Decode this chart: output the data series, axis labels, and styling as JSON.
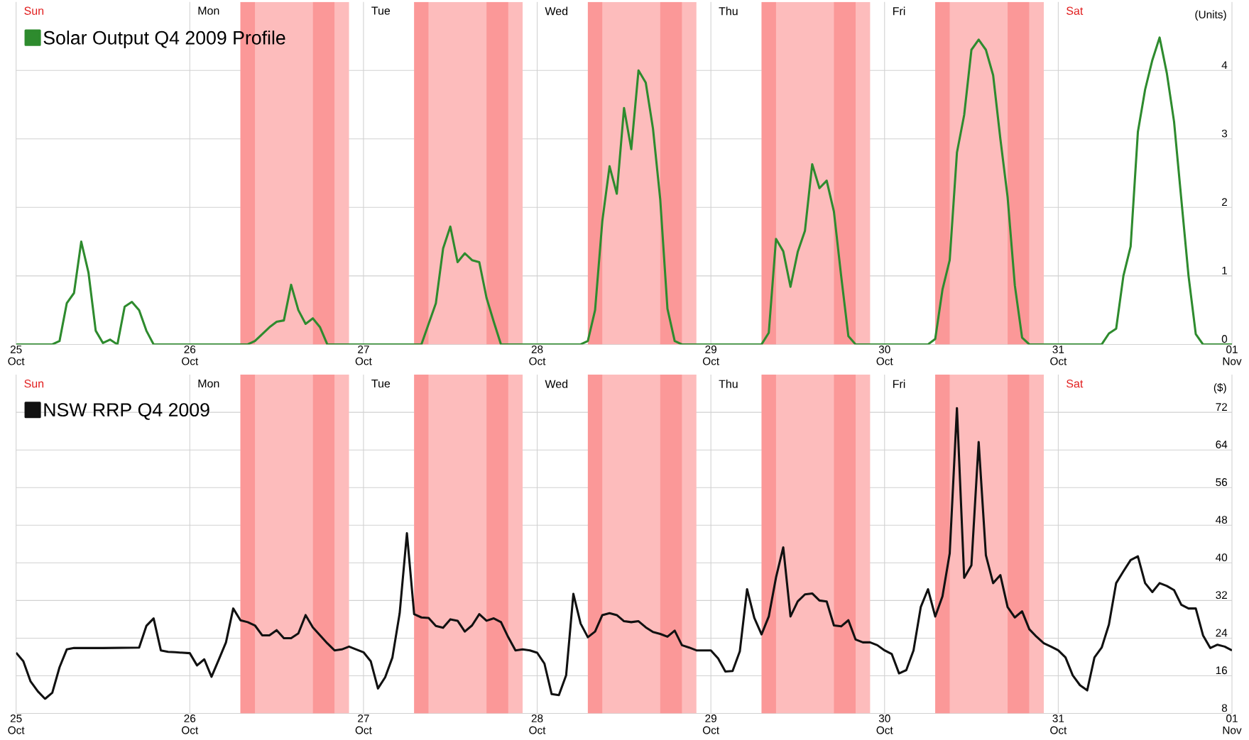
{
  "chart_data": [
    {
      "type": "line",
      "xlim": [
        "2009-10-25T00:00",
        "2009-11-01T00:00"
      ],
      "ylim": [
        0,
        5
      ],
      "yticks": [
        0,
        1,
        2,
        3,
        4
      ],
      "ylabel": "(Units)",
      "grid": true,
      "legend": "top left",
      "xticks": [
        {
          "value": "2009-10-25T00:00",
          "label": "25 Oct"
        },
        {
          "value": "2009-10-26T00:00",
          "label": "26 Oct"
        },
        {
          "value": "2009-10-27T00:00",
          "label": "27 Oct"
        },
        {
          "value": "2009-10-28T00:00",
          "label": "28 Oct"
        },
        {
          "value": "2009-10-29T00:00",
          "label": "29 Oct"
        },
        {
          "value": "2009-10-30T00:00",
          "label": "30 Oct"
        },
        {
          "value": "2009-10-31T00:00",
          "label": "31 Oct"
        },
        {
          "value": "2009-11-01T00:00",
          "label": "01 Nov"
        }
      ],
      "annotations": [
        "Sun",
        "Mon",
        "Tue",
        "Wed",
        "Thu",
        "Fri",
        "Sat"
      ],
      "bands": [
        {
          "axis": "x",
          "from": "2009-10-26T07:00",
          "to": "2009-10-26T22:00",
          "color": "#fdbcbc"
        },
        {
          "axis": "x",
          "from": "2009-10-27T07:00",
          "to": "2009-10-27T22:00",
          "color": "#fdbcbc"
        },
        {
          "axis": "x",
          "from": "2009-10-28T07:00",
          "to": "2009-10-28T22:00",
          "color": "#fdbcbc"
        },
        {
          "axis": "x",
          "from": "2009-10-29T07:00",
          "to": "2009-10-29T22:00",
          "color": "#fdbcbc"
        },
        {
          "axis": "x",
          "from": "2009-10-30T07:00",
          "to": "2009-10-30T22:00",
          "color": "#fdbcbc"
        },
        {
          "axis": "x",
          "from": "2009-10-26T07:00",
          "to": "2009-10-26T09:00",
          "color": "#fb9898"
        },
        {
          "axis": "x",
          "from": "2009-10-26T17:00",
          "to": "2009-10-26T20:00",
          "color": "#fb9898"
        },
        {
          "axis": "x",
          "from": "2009-10-27T07:00",
          "to": "2009-10-27T09:00",
          "color": "#fb9898"
        },
        {
          "axis": "x",
          "from": "2009-10-27T17:00",
          "to": "2009-10-27T20:00",
          "color": "#fb9898"
        },
        {
          "axis": "x",
          "from": "2009-10-28T07:00",
          "to": "2009-10-28T09:00",
          "color": "#fb9898"
        },
        {
          "axis": "x",
          "from": "2009-10-28T17:00",
          "to": "2009-10-28T20:00",
          "color": "#fb9898"
        },
        {
          "axis": "x",
          "from": "2009-10-29T07:00",
          "to": "2009-10-29T09:00",
          "color": "#fb9898"
        },
        {
          "axis": "x",
          "from": "2009-10-29T17:00",
          "to": "2009-10-29T20:00",
          "color": "#fb9898"
        },
        {
          "axis": "x",
          "from": "2009-10-30T07:00",
          "to": "2009-10-30T09:00",
          "color": "#fb9898"
        },
        {
          "axis": "x",
          "from": "2009-10-30T17:00",
          "to": "2009-10-30T20:00",
          "color": "#fb9898"
        }
      ],
      "series": [
        {
          "name": "Solar Output Q4 2009 Profile",
          "color": "#2e8b2e",
          "x": [
            "2009-10-25T00:00",
            "2009-10-25T05:00",
            "2009-10-25T06:00",
            "2009-10-25T07:00",
            "2009-10-25T08:00",
            "2009-10-25T09:00",
            "2009-10-25T10:00",
            "2009-10-25T11:00",
            "2009-10-25T12:00",
            "2009-10-25T13:00",
            "2009-10-25T14:00",
            "2009-10-25T15:00",
            "2009-10-25T16:00",
            "2009-10-25T17:00",
            "2009-10-25T18:00",
            "2009-10-25T19:00",
            "2009-10-26T08:00",
            "2009-10-26T09:00",
            "2009-10-26T11:00",
            "2009-10-26T12:00",
            "2009-10-26T13:00",
            "2009-10-26T14:00",
            "2009-10-26T15:00",
            "2009-10-26T16:00",
            "2009-10-26T17:00",
            "2009-10-26T18:00",
            "2009-10-26T19:00",
            "2009-10-27T08:00",
            "2009-10-27T09:00",
            "2009-10-27T10:00",
            "2009-10-27T11:00",
            "2009-10-27T12:00",
            "2009-10-27T13:00",
            "2009-10-27T14:00",
            "2009-10-27T15:00",
            "2009-10-27T16:00",
            "2009-10-27T17:00",
            "2009-10-27T18:00",
            "2009-10-27T19:00",
            "2009-10-28T06:00",
            "2009-10-28T07:00",
            "2009-10-28T08:00",
            "2009-10-28T09:00",
            "2009-10-28T10:00",
            "2009-10-28T11:00",
            "2009-10-28T12:00",
            "2009-10-28T13:00",
            "2009-10-28T14:00",
            "2009-10-28T15:00",
            "2009-10-28T16:00",
            "2009-10-28T17:00",
            "2009-10-28T18:00",
            "2009-10-28T19:00",
            "2009-10-28T20:00",
            "2009-10-29T07:00",
            "2009-10-29T08:00",
            "2009-10-29T09:00",
            "2009-10-29T10:00",
            "2009-10-29T11:00",
            "2009-10-29T12:00",
            "2009-10-29T13:00",
            "2009-10-29T14:00",
            "2009-10-29T15:00",
            "2009-10-29T16:00",
            "2009-10-29T17:00",
            "2009-10-29T18:00",
            "2009-10-29T19:00",
            "2009-10-29T20:00",
            "2009-10-30T06:00",
            "2009-10-30T07:00",
            "2009-10-30T08:00",
            "2009-10-30T09:00",
            "2009-10-30T10:00",
            "2009-10-30T11:00",
            "2009-10-30T12:00",
            "2009-10-30T13:00",
            "2009-10-30T14:00",
            "2009-10-30T15:00",
            "2009-10-30T16:00",
            "2009-10-30T17:00",
            "2009-10-30T18:00",
            "2009-10-30T19:00",
            "2009-10-30T20:00",
            "2009-10-31T06:00",
            "2009-10-31T07:00",
            "2009-10-31T08:00",
            "2009-10-31T09:00",
            "2009-10-31T10:00",
            "2009-10-31T11:00",
            "2009-10-31T12:00",
            "2009-10-31T13:00",
            "2009-10-31T14:00",
            "2009-10-31T15:00",
            "2009-10-31T16:00",
            "2009-10-31T17:00",
            "2009-10-31T18:00",
            "2009-10-31T19:00",
            "2009-10-31T20:00",
            "2009-11-01T00:00"
          ],
          "values": [
            0,
            0,
            0.05,
            0.6,
            0.75,
            1.5,
            1.05,
            0.2,
            0.02,
            0.07,
            0,
            0.55,
            0.62,
            0.5,
            0.2,
            0,
            0,
            0.05,
            0.25,
            0.33,
            0.35,
            0.87,
            0.5,
            0.3,
            0.38,
            0.25,
            0,
            0,
            0.3,
            0.6,
            1.4,
            1.72,
            1.2,
            1.33,
            1.23,
            1.2,
            0.68,
            0.33,
            0,
            0,
            0.05,
            0.5,
            1.8,
            2.6,
            2.2,
            3.45,
            2.85,
            4.0,
            3.82,
            3.15,
            2.12,
            0.52,
            0.05,
            0,
            0,
            0.17,
            1.54,
            1.36,
            0.84,
            1.35,
            1.66,
            2.63,
            2.28,
            2.39,
            1.94,
            1.0,
            0.12,
            0,
            0,
            0.08,
            0.8,
            1.23,
            2.8,
            3.35,
            4.3,
            4.45,
            4.3,
            3.93,
            3.0,
            2.15,
            0.86,
            0.1,
            0,
            0,
            0.16,
            0.23,
            1.0,
            1.43,
            3.1,
            3.72,
            4.15,
            4.48,
            3.96,
            3.25,
            2.12,
            1.0,
            0.15,
            0,
            0
          ]
        }
      ]
    },
    {
      "type": "line",
      "xlim": [
        "2009-10-25T00:00",
        "2009-11-01T00:00"
      ],
      "ylim": [
        8,
        80
      ],
      "yticks": [
        8,
        16,
        24,
        32,
        40,
        48,
        56,
        64,
        72
      ],
      "ylabel": "($)",
      "grid": true,
      "legend": "top left",
      "xticks": [
        {
          "value": "2009-10-25T00:00",
          "label": "25 Oct"
        },
        {
          "value": "2009-10-26T00:00",
          "label": "26 Oct"
        },
        {
          "value": "2009-10-27T00:00",
          "label": "27 Oct"
        },
        {
          "value": "2009-10-28T00:00",
          "label": "28 Oct"
        },
        {
          "value": "2009-10-29T00:00",
          "label": "29 Oct"
        },
        {
          "value": "2009-10-30T00:00",
          "label": "30 Oct"
        },
        {
          "value": "2009-10-31T00:00",
          "label": "31 Oct"
        },
        {
          "value": "2009-11-01T00:00",
          "label": "01 Nov"
        }
      ],
      "annotations": [
        "Sun",
        "Mon",
        "Tue",
        "Wed",
        "Thu",
        "Fri",
        "Sat"
      ],
      "bands": [
        {
          "axis": "x",
          "from": "2009-10-26T07:00",
          "to": "2009-10-26T22:00",
          "color": "#fdbcbc"
        },
        {
          "axis": "x",
          "from": "2009-10-27T07:00",
          "to": "2009-10-27T22:00",
          "color": "#fdbcbc"
        },
        {
          "axis": "x",
          "from": "2009-10-28T07:00",
          "to": "2009-10-28T22:00",
          "color": "#fdbcbc"
        },
        {
          "axis": "x",
          "from": "2009-10-29T07:00",
          "to": "2009-10-29T22:00",
          "color": "#fdbcbc"
        },
        {
          "axis": "x",
          "from": "2009-10-30T07:00",
          "to": "2009-10-30T22:00",
          "color": "#fdbcbc"
        },
        {
          "axis": "x",
          "from": "2009-10-26T07:00",
          "to": "2009-10-26T09:00",
          "color": "#fb9898"
        },
        {
          "axis": "x",
          "from": "2009-10-26T17:00",
          "to": "2009-10-26T20:00",
          "color": "#fb9898"
        },
        {
          "axis": "x",
          "from": "2009-10-27T07:00",
          "to": "2009-10-27T09:00",
          "color": "#fb9898"
        },
        {
          "axis": "x",
          "from": "2009-10-27T17:00",
          "to": "2009-10-27T20:00",
          "color": "#fb9898"
        },
        {
          "axis": "x",
          "from": "2009-10-28T07:00",
          "to": "2009-10-28T09:00",
          "color": "#fb9898"
        },
        {
          "axis": "x",
          "from": "2009-10-28T17:00",
          "to": "2009-10-28T20:00",
          "color": "#fb9898"
        },
        {
          "axis": "x",
          "from": "2009-10-29T07:00",
          "to": "2009-10-29T09:00",
          "color": "#fb9898"
        },
        {
          "axis": "x",
          "from": "2009-10-29T17:00",
          "to": "2009-10-29T20:00",
          "color": "#fb9898"
        },
        {
          "axis": "x",
          "from": "2009-10-30T07:00",
          "to": "2009-10-30T09:00",
          "color": "#fb9898"
        },
        {
          "axis": "x",
          "from": "2009-10-30T17:00",
          "to": "2009-10-30T20:00",
          "color": "#fb9898"
        }
      ],
      "series": [
        {
          "name": "NSW RRP Q4 2009",
          "color": "#111111",
          "x": [
            "2009-10-25T00:00",
            "2009-10-25T01:00",
            "2009-10-25T02:00",
            "2009-10-25T03:00",
            "2009-10-25T04:00",
            "2009-10-25T05:00",
            "2009-10-25T06:00",
            "2009-10-25T07:00",
            "2009-10-25T08:00",
            "2009-10-25T12:00",
            "2009-10-25T17:00",
            "2009-10-25T18:00",
            "2009-10-25T19:00",
            "2009-10-25T20:00",
            "2009-10-25T21:00",
            "2009-10-25T22:00",
            "2009-10-25T23:00",
            "2009-10-26T00:00",
            "2009-10-26T01:00",
            "2009-10-26T02:00",
            "2009-10-26T03:00",
            "2009-10-26T04:00",
            "2009-10-26T05:00",
            "2009-10-26T06:00",
            "2009-10-26T07:00",
            "2009-10-26T08:00",
            "2009-10-26T09:00",
            "2009-10-26T10:00",
            "2009-10-26T11:00",
            "2009-10-26T12:00",
            "2009-10-26T13:00",
            "2009-10-26T14:00",
            "2009-10-26T15:00",
            "2009-10-26T16:00",
            "2009-10-26T17:00",
            "2009-10-26T18:00",
            "2009-10-26T19:00",
            "2009-10-26T20:00",
            "2009-10-26T21:00",
            "2009-10-26T22:00",
            "2009-10-26T23:00",
            "2009-10-27T00:00",
            "2009-10-27T01:00",
            "2009-10-27T02:00",
            "2009-10-27T03:00",
            "2009-10-27T04:00",
            "2009-10-27T05:00",
            "2009-10-27T06:00",
            "2009-10-27T07:00",
            "2009-10-27T08:00",
            "2009-10-27T09:00",
            "2009-10-27T10:00",
            "2009-10-27T11:00",
            "2009-10-27T12:00",
            "2009-10-27T13:00",
            "2009-10-27T14:00",
            "2009-10-27T15:00",
            "2009-10-27T16:00",
            "2009-10-27T17:00",
            "2009-10-27T18:00",
            "2009-10-27T19:00",
            "2009-10-27T20:00",
            "2009-10-27T21:00",
            "2009-10-27T22:00",
            "2009-10-27T23:00",
            "2009-10-28T00:00",
            "2009-10-28T01:00",
            "2009-10-28T02:00",
            "2009-10-28T03:00",
            "2009-10-28T04:00",
            "2009-10-28T05:00",
            "2009-10-28T06:00",
            "2009-10-28T07:00",
            "2009-10-28T08:00",
            "2009-10-28T09:00",
            "2009-10-28T10:00",
            "2009-10-28T11:00",
            "2009-10-28T12:00",
            "2009-10-28T13:00",
            "2009-10-28T14:00",
            "2009-10-28T15:00",
            "2009-10-28T16:00",
            "2009-10-28T17:00",
            "2009-10-28T18:00",
            "2009-10-28T19:00",
            "2009-10-28T20:00",
            "2009-10-28T21:00",
            "2009-10-28T22:00",
            "2009-10-28T23:00",
            "2009-10-29T00:00",
            "2009-10-29T01:00",
            "2009-10-29T02:00",
            "2009-10-29T03:00",
            "2009-10-29T04:00",
            "2009-10-29T05:00",
            "2009-10-29T06:00",
            "2009-10-29T07:00",
            "2009-10-29T08:00",
            "2009-10-29T09:00",
            "2009-10-29T10:00",
            "2009-10-29T11:00",
            "2009-10-29T12:00",
            "2009-10-29T13:00",
            "2009-10-29T14:00",
            "2009-10-29T15:00",
            "2009-10-29T16:00",
            "2009-10-29T17:00",
            "2009-10-29T18:00",
            "2009-10-29T19:00",
            "2009-10-29T20:00",
            "2009-10-29T21:00",
            "2009-10-29T22:00",
            "2009-10-29T23:00",
            "2009-10-30T00:00",
            "2009-10-30T01:00",
            "2009-10-30T02:00",
            "2009-10-30T03:00",
            "2009-10-30T04:00",
            "2009-10-30T05:00",
            "2009-10-30T06:00",
            "2009-10-30T07:00",
            "2009-10-30T08:00",
            "2009-10-30T09:00",
            "2009-10-30T10:00",
            "2009-10-30T11:00",
            "2009-10-30T12:00",
            "2009-10-30T13:00",
            "2009-10-30T14:00",
            "2009-10-30T15:00",
            "2009-10-30T16:00",
            "2009-10-30T17:00",
            "2009-10-30T18:00",
            "2009-10-30T19:00",
            "2009-10-30T20:00",
            "2009-10-30T21:00",
            "2009-10-30T22:00",
            "2009-10-30T23:00",
            "2009-10-31T00:00",
            "2009-10-31T01:00",
            "2009-10-31T02:00",
            "2009-10-31T03:00",
            "2009-10-31T04:00",
            "2009-10-31T05:00",
            "2009-10-31T06:00",
            "2009-10-31T07:00",
            "2009-10-31T08:00",
            "2009-10-31T09:00",
            "2009-10-31T10:00",
            "2009-10-31T11:00",
            "2009-10-31T12:00",
            "2009-10-31T13:00",
            "2009-10-31T14:00",
            "2009-10-31T15:00",
            "2009-10-31T16:00",
            "2009-10-31T17:00",
            "2009-10-31T18:00",
            "2009-10-31T19:00",
            "2009-10-31T20:00",
            "2009-10-31T21:00",
            "2009-10-31T22:00",
            "2009-10-31T23:00",
            "2009-11-01T00:00"
          ],
          "values": [
            20.9,
            19.1,
            14.8,
            12.7,
            11.1,
            12.4,
            17.8,
            21.6,
            21.9,
            21.9,
            22.0,
            26.6,
            28.2,
            21.4,
            21.1,
            21.0,
            20.9,
            20.8,
            18.2,
            19.5,
            15.8,
            19.4,
            23.1,
            30.3,
            27.8,
            27.4,
            26.7,
            24.6,
            24.6,
            25.7,
            24.0,
            24.0,
            25.0,
            28.9,
            26.3,
            24.6,
            22.9,
            21.4,
            21.6,
            22.2,
            21.6,
            21.0,
            19.1,
            13.3,
            15.7,
            19.9,
            29.3,
            46.3,
            29.1,
            28.4,
            28.3,
            26.6,
            26.2,
            28.0,
            27.7,
            25.4,
            26.7,
            29.1,
            27.7,
            28.2,
            27.4,
            24.2,
            21.4,
            21.6,
            21.4,
            20.9,
            18.6,
            12.1,
            11.9,
            16.1,
            33.4,
            27.1,
            24.2,
            25.4,
            28.9,
            29.3,
            28.9,
            27.6,
            27.4,
            27.6,
            26.3,
            25.3,
            24.9,
            24.3,
            25.6,
            22.5,
            22.0,
            21.4,
            21.4,
            21.4,
            19.7,
            16.9,
            17.0,
            21.2,
            34.4,
            28.3,
            24.8,
            28.6,
            36.9,
            43.3,
            28.6,
            31.8,
            33.3,
            33.5,
            32.0,
            31.8,
            26.7,
            26.5,
            27.8,
            23.7,
            23.1,
            23.1,
            22.5,
            21.4,
            20.6,
            16.5,
            17.2,
            21.4,
            30.6,
            34.4,
            28.6,
            32.9,
            42.0,
            72.9,
            36.8,
            39.5,
            65.7,
            41.6,
            35.7,
            37.4,
            30.6,
            28.4,
            29.7,
            25.9,
            24.3,
            22.9,
            22.2,
            21.4,
            19.9,
            16.1,
            14.0,
            12.9,
            19.9,
            22.0,
            26.9,
            35.7,
            38.2,
            40.6,
            41.4,
            35.7,
            33.8,
            35.7,
            35.1,
            34.2,
            31.1,
            30.3,
            30.3,
            24.6,
            21.9,
            22.6,
            22.2,
            21.4
          ]
        }
      ]
    }
  ]
}
